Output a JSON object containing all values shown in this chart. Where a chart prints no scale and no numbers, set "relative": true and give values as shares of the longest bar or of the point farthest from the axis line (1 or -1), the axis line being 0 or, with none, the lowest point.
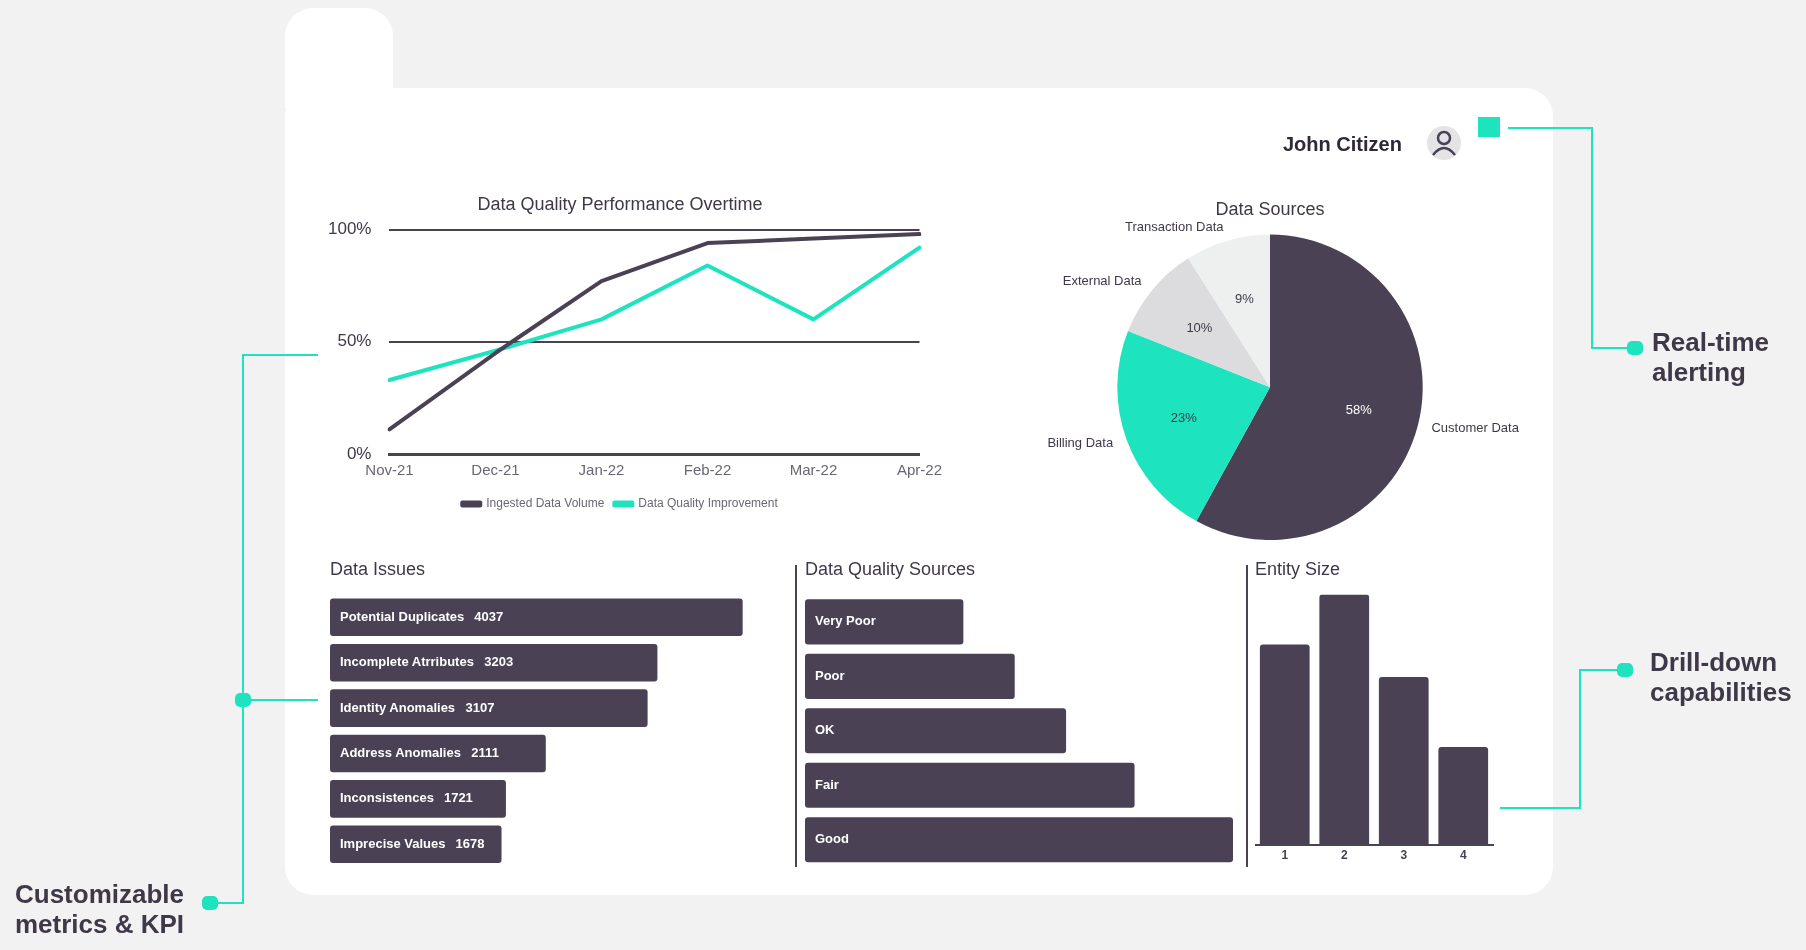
{
  "chart_data": [
    {
      "type": "line",
      "title": "Data Quality Performance Overtime",
      "categories": [
        "Nov-21",
        "Dec-21",
        "Jan-22",
        "Feb-22",
        "Mar-22",
        "Apr-22"
      ],
      "series": [
        {
          "name": "Ingested Data Volume",
          "color": "#4a4254",
          "values": [
            11,
            45,
            77,
            94,
            96,
            98
          ]
        },
        {
          "name": "Data Quality Improvement",
          "color": "#1de3bf",
          "values": [
            33,
            46,
            60,
            84,
            60,
            92
          ]
        }
      ],
      "ylim": [
        0,
        100
      ],
      "yticks": [
        {
          "value": 0,
          "label": "0%"
        },
        {
          "value": 50,
          "label": "50%"
        },
        {
          "value": 100,
          "label": "100%"
        }
      ],
      "grid": "y",
      "legend": "bottom"
    },
    {
      "type": "pie",
      "title": "Data Sources",
      "categories": [
        "Customer Data",
        "Billing Data",
        "External Data",
        "Transaction Data"
      ],
      "values": [
        58,
        23,
        10,
        9
      ],
      "colors": [
        "#4a4254",
        "#1de3bf",
        "#dcdcde",
        "#eef0f0"
      ],
      "value_labels": [
        "58%",
        "23%",
        "10%",
        "9%"
      ]
    },
    {
      "type": "bar",
      "orientation": "horizontal",
      "title": "Data Issues",
      "categories": [
        "Potential Duplicates",
        "Incomplete Atrributes",
        "Identity Anomalies",
        "Address Anomalies",
        "Inconsistences",
        "Imprecise Values"
      ],
      "values": [
        4037,
        3203,
        3107,
        2111,
        1721,
        1678
      ],
      "color": "#4a4254",
      "data_labels": true
    },
    {
      "type": "bar",
      "orientation": "horizontal",
      "title": "Data Quality Sources",
      "categories": [
        "Very Poor",
        "Poor",
        "OK",
        "Fair",
        "Good"
      ],
      "values": [
        0.37,
        0.49,
        0.61,
        0.77,
        1
      ],
      "color": "#4a4254",
      "relative": true
    },
    {
      "type": "bar",
      "title": "Entity Size",
      "categories": [
        "1",
        "2",
        "3",
        "4"
      ],
      "values": [
        0.8,
        1,
        0.67,
        0.39
      ],
      "color": "#4a4254",
      "relative": true
    },
    {
      "type": "other",
      "annotations": [
        "John Citizen",
        "Customizable metrics & KPI",
        "Real-time alerting",
        "Drill-down capabilities"
      ]
    }
  ]
}
